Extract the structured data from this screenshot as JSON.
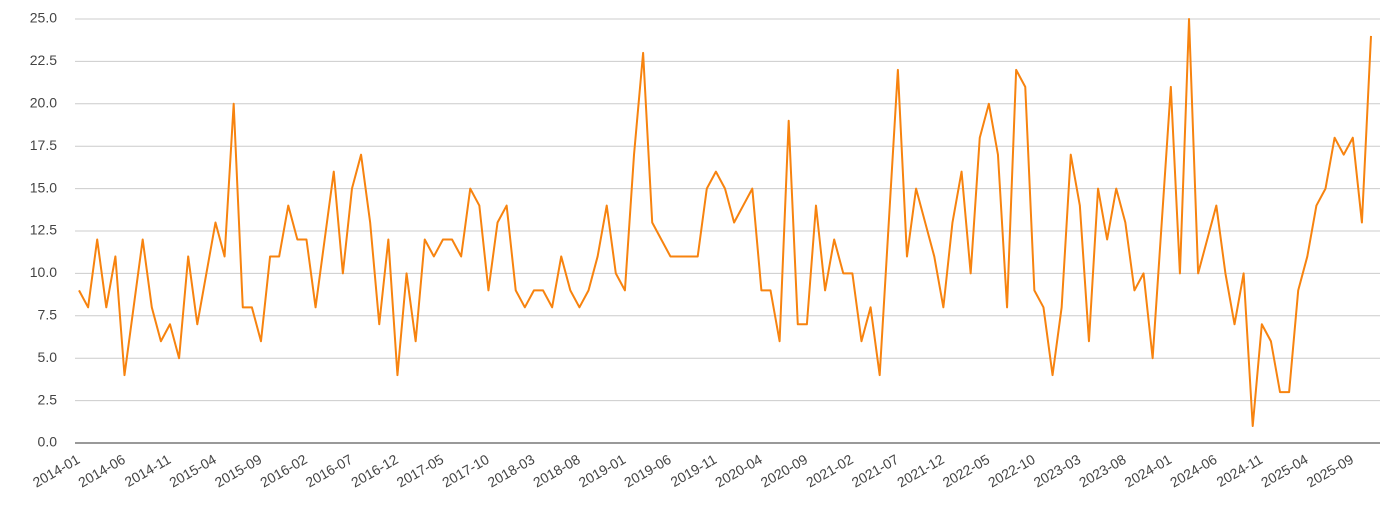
{
  "chart_data": {
    "type": "line",
    "categories": [
      "2014-01",
      null,
      null,
      null,
      null,
      "2014-06",
      null,
      null,
      null,
      null,
      "2014-11",
      null,
      null,
      null,
      null,
      "2015-04",
      null,
      null,
      null,
      null,
      "2015-09",
      null,
      null,
      null,
      null,
      "2016-02",
      null,
      null,
      null,
      null,
      "2016-07",
      null,
      null,
      null,
      null,
      "2016-12",
      null,
      null,
      null,
      null,
      "2017-05",
      null,
      null,
      null,
      null,
      "2017-10",
      null,
      null,
      null,
      null,
      "2018-03",
      null,
      null,
      null,
      null,
      "2018-08",
      null,
      null,
      null,
      null,
      "2019-01",
      null,
      null,
      null,
      null,
      "2019-06",
      null,
      null,
      null,
      null,
      "2019-11",
      null,
      null,
      null,
      null,
      "2020-04",
      null,
      null,
      null,
      null,
      "2020-09",
      null,
      null,
      null,
      null,
      "2021-02",
      null,
      null,
      null,
      null,
      "2021-07",
      null,
      null,
      null,
      null,
      "2021-12",
      null,
      null,
      null,
      null,
      "2022-05",
      null,
      null,
      null,
      null,
      "2022-10",
      null,
      null,
      null,
      null,
      "2023-03",
      null,
      null,
      null,
      null,
      "2023-08",
      null,
      null,
      null,
      null,
      "2024-01",
      null,
      null,
      null,
      null,
      "2024-06",
      null,
      null,
      null,
      null,
      "2024-11",
      null,
      null,
      null,
      null,
      "2025-04",
      null,
      null,
      null,
      null,
      "2025-09",
      null,
      null
    ],
    "values": [
      9,
      8,
      12,
      8,
      11,
      4,
      8,
      12,
      8,
      6,
      7,
      5,
      11,
      7,
      10,
      13,
      11,
      20,
      8,
      8,
      6,
      11,
      11,
      14,
      12,
      12,
      8,
      12,
      16,
      10,
      15,
      17,
      13,
      7,
      12,
      4,
      10,
      6,
      12,
      11,
      12,
      12,
      11,
      15,
      14,
      9,
      13,
      14,
      9,
      8,
      9,
      9,
      8,
      11,
      9,
      8,
      9,
      11,
      14,
      10,
      9,
      17,
      23,
      13,
      12,
      11,
      11,
      11,
      11,
      15,
      16,
      15,
      13,
      14,
      15,
      9,
      9,
      6,
      19,
      7,
      7,
      14,
      9,
      12,
      10,
      10,
      6,
      8,
      4,
      13,
      22,
      11,
      15,
      13,
      11,
      8,
      13,
      16,
      10,
      18,
      20,
      17,
      8,
      22,
      21,
      9,
      8,
      4,
      8,
      17,
      14,
      6,
      15,
      12,
      15,
      13,
      9,
      10,
      5,
      13,
      21,
      10,
      25,
      10,
      12,
      14,
      10,
      7,
      10,
      1,
      7,
      6,
      3,
      3,
      9,
      11,
      14,
      15,
      18,
      17,
      18,
      13,
      24
    ],
    "color": "#f7830f",
    "ylim": [
      0,
      25
    ],
    "yticks": [
      {
        "value": 0,
        "label": "0.0"
      },
      2.5,
      {
        "value": 5,
        "label": "5.0"
      },
      7.5,
      {
        "value": 10,
        "label": "10.0"
      },
      12.5,
      {
        "value": 15,
        "label": "15.0"
      },
      17.5,
      {
        "value": 20,
        "label": "20.0"
      },
      22.5,
      {
        "value": 25,
        "label": "25.0"
      }
    ],
    "grid": true
  }
}
